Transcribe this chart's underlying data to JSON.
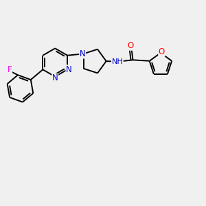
{
  "background_color": "#f0f0f0",
  "bond_color": "#000000",
  "atom_colors": {
    "N": "#0000cc",
    "O": "#ff0000",
    "F": "#ee00ee",
    "C": "#000000",
    "H": "#000000",
    "NH": "#0000cc"
  },
  "lw": 1.4,
  "fontsize": 8.5,
  "figsize": [
    3.0,
    3.0
  ],
  "dpi": 100
}
